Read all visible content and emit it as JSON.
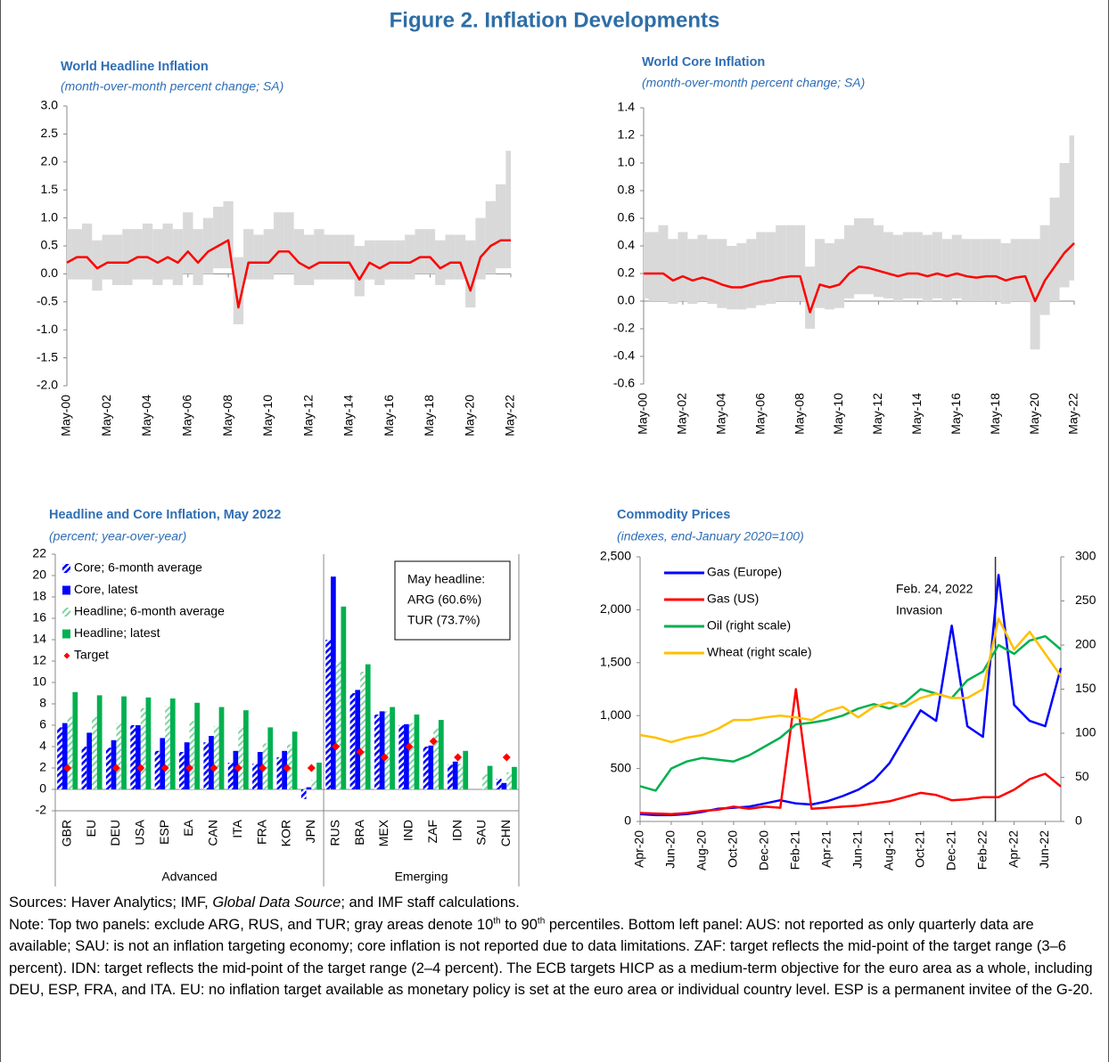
{
  "title": "Figure 2. Inflation Developments",
  "chart_data": [
    {
      "type": "line",
      "title": "World Headline Inflation",
      "subtitle": "(month-over-month percent change; SA)",
      "categories": [
        "May-00",
        null,
        null,
        null,
        "May-02",
        null,
        null,
        null,
        "May-04",
        null,
        null,
        null,
        "May-06",
        null,
        null,
        null,
        "May-08",
        null,
        null,
        null,
        "May-10",
        null,
        null,
        null,
        "May-12",
        null,
        null,
        null,
        "May-14",
        null,
        null,
        null,
        "May-16",
        null,
        null,
        null,
        "May-18",
        null,
        null,
        null,
        "May-20",
        null,
        null,
        null,
        "May-22"
      ],
      "band": {
        "color": "#d9d9d9",
        "low": [
          -0.1,
          -0.1,
          -0.1,
          -0.3,
          -0.1,
          -0.2,
          -0.2,
          -0.1,
          -0.1,
          -0.2,
          -0.1,
          -0.2,
          0.0,
          -0.2,
          0.0,
          0.1,
          0.1,
          -0.9,
          -0.1,
          -0.1,
          -0.1,
          0.0,
          0.0,
          -0.2,
          -0.2,
          -0.1,
          -0.1,
          -0.1,
          -0.1,
          -0.4,
          -0.1,
          -0.2,
          -0.1,
          -0.1,
          -0.1,
          0.0,
          0.0,
          -0.2,
          -0.1,
          -0.1,
          -0.6,
          -0.1,
          0.0,
          0.1,
          0.1
        ],
        "high": [
          0.8,
          0.8,
          0.9,
          0.6,
          0.7,
          0.7,
          0.8,
          0.8,
          0.9,
          0.8,
          0.9,
          0.8,
          1.1,
          0.8,
          1.0,
          1.2,
          1.3,
          0.3,
          0.8,
          0.7,
          0.8,
          1.1,
          1.1,
          0.8,
          0.7,
          0.8,
          0.7,
          0.7,
          0.7,
          0.5,
          0.6,
          0.6,
          0.6,
          0.6,
          0.7,
          0.8,
          0.8,
          0.6,
          0.7,
          0.7,
          0.6,
          1.0,
          1.3,
          1.6,
          2.2
        ]
      },
      "series": [
        {
          "color": "#ff0000",
          "values": [
            0.2,
            0.3,
            0.3,
            0.1,
            0.2,
            0.2,
            0.2,
            0.3,
            0.3,
            0.2,
            0.3,
            0.2,
            0.4,
            0.2,
            0.4,
            0.5,
            0.6,
            -0.6,
            0.2,
            0.2,
            0.2,
            0.4,
            0.4,
            0.2,
            0.1,
            0.2,
            0.2,
            0.2,
            0.2,
            -0.1,
            0.2,
            0.1,
            0.2,
            0.2,
            0.2,
            0.3,
            0.3,
            0.1,
            0.2,
            0.2,
            -0.3,
            0.3,
            0.5,
            0.6,
            0.6
          ]
        }
      ],
      "ylim": [
        -2,
        3
      ],
      "yticks": [
        {
          "value": -2,
          "label": "-2.0"
        },
        -1.5,
        {
          "value": -1,
          "label": "-1.0"
        },
        -0.5,
        {
          "value": 0,
          "label": "0.0"
        },
        0.5,
        {
          "value": 1,
          "label": "1.0"
        },
        1.5,
        {
          "value": 2,
          "label": "2.0"
        },
        2.5,
        {
          "value": 3,
          "label": "3.0"
        }
      ]
    },
    {
      "type": "line",
      "title": "World Core Inflation",
      "subtitle": "(month-over-month percent change; SA)",
      "categories": [
        "May-00",
        null,
        null,
        null,
        "May-02",
        null,
        null,
        null,
        "May-04",
        null,
        null,
        null,
        "May-06",
        null,
        null,
        null,
        "May-08",
        null,
        null,
        null,
        "May-10",
        null,
        null,
        null,
        "May-12",
        null,
        null,
        null,
        "May-14",
        null,
        null,
        null,
        "May-16",
        null,
        null,
        null,
        "May-18",
        null,
        null,
        null,
        "May-20",
        null,
        null,
        null,
        "May-22"
      ],
      "band": {
        "color": "#d9d9d9",
        "low": [
          0.02,
          0.0,
          0.0,
          -0.02,
          0.0,
          -0.02,
          0.0,
          -0.02,
          -0.05,
          -0.06,
          -0.06,
          -0.05,
          -0.03,
          -0.02,
          0.0,
          0.0,
          0.0,
          -0.2,
          -0.05,
          -0.06,
          -0.05,
          0.02,
          0.05,
          0.05,
          0.03,
          0.02,
          0.0,
          0.02,
          0.02,
          0.0,
          0.02,
          0.0,
          0.02,
          0.0,
          0.0,
          0.0,
          0.0,
          -0.02,
          0.0,
          0.0,
          -0.35,
          -0.1,
          0.0,
          0.1,
          0.15
        ],
        "high": [
          0.5,
          0.5,
          0.55,
          0.45,
          0.5,
          0.45,
          0.48,
          0.45,
          0.45,
          0.4,
          0.42,
          0.45,
          0.5,
          0.5,
          0.55,
          0.55,
          0.55,
          0.25,
          0.45,
          0.42,
          0.45,
          0.55,
          0.6,
          0.6,
          0.55,
          0.5,
          0.48,
          0.5,
          0.5,
          0.48,
          0.5,
          0.45,
          0.48,
          0.45,
          0.45,
          0.45,
          0.45,
          0.42,
          0.45,
          0.45,
          0.45,
          0.55,
          0.75,
          1.0,
          1.2
        ]
      },
      "series": [
        {
          "color": "#ff0000",
          "values": [
            0.2,
            0.2,
            0.2,
            0.15,
            0.18,
            0.15,
            0.17,
            0.15,
            0.12,
            0.1,
            0.1,
            0.12,
            0.14,
            0.15,
            0.17,
            0.18,
            0.18,
            -0.08,
            0.12,
            0.1,
            0.12,
            0.2,
            0.25,
            0.24,
            0.22,
            0.2,
            0.18,
            0.2,
            0.2,
            0.18,
            0.2,
            0.18,
            0.2,
            0.18,
            0.17,
            0.18,
            0.18,
            0.15,
            0.17,
            0.18,
            0.0,
            0.15,
            0.25,
            0.35,
            0.42
          ]
        }
      ],
      "ylim": [
        -0.6,
        1.4
      ],
      "yticks": [
        -0.6,
        -0.4,
        -0.2,
        {
          "value": 0,
          "label": "0.0"
        },
        0.2,
        0.4,
        0.6,
        0.8,
        {
          "value": 1,
          "label": "1.0"
        },
        1.2,
        1.4
      ]
    },
    {
      "type": "bar",
      "title": "Headline and Core Inflation, May 2022",
      "subtitle": "(percent; year-over-year)",
      "categories": [
        "GBR",
        "EU",
        "DEU",
        "USA",
        "ESP",
        "EA",
        "CAN",
        "ITA",
        "FRA",
        "KOR",
        "JPN",
        "RUS",
        "BRA",
        "MEX",
        "IND",
        "ZAF",
        "IDN",
        "SAU",
        "CHN"
      ],
      "category_groups": [
        "Advanced",
        "Advanced",
        "Advanced",
        "Advanced",
        "Advanced",
        "Advanced",
        "Advanced",
        "Advanced",
        "Advanced",
        "Advanced",
        "Advanced",
        "Emerging",
        "Emerging",
        "Emerging",
        "Emerging",
        "Emerging",
        "Emerging",
        "Emerging",
        "Emerging"
      ],
      "series": [
        {
          "name": "Core; 6-month average",
          "color": "#0000ff",
          "pattern": "hatch",
          "values": [
            5.8,
            4.0,
            3.9,
            6.0,
            3.6,
            3.5,
            4.4,
            2.5,
            2.4,
            3.0,
            -0.9,
            14.0,
            9.0,
            7.0,
            6.0,
            4.0,
            2.3,
            null,
            1.0
          ]
        },
        {
          "name": "Core, latest",
          "color": "#0000ff",
          "values": [
            6.2,
            5.3,
            4.6,
            6.0,
            4.8,
            4.4,
            5.0,
            3.6,
            3.5,
            3.6,
            0.2,
            19.9,
            9.3,
            7.3,
            6.1,
            4.1,
            2.6,
            null,
            0.6
          ]
        },
        {
          "name": "Headline; 6-month average",
          "color": "#00b050",
          "pattern": "hatch",
          "values": [
            6.8,
            6.8,
            6.2,
            7.6,
            7.8,
            6.4,
            5.9,
            5.8,
            4.3,
            4.2,
            0.9,
            12.0,
            11.0,
            7.3,
            6.2,
            5.7,
            2.4,
            1.4,
            1.6
          ]
        },
        {
          "name": "Headline; latest",
          "color": "#00b050",
          "values": [
            9.1,
            8.8,
            8.7,
            8.6,
            8.5,
            8.1,
            7.7,
            7.4,
            5.8,
            5.4,
            2.5,
            17.1,
            11.7,
            7.7,
            7.0,
            6.5,
            3.6,
            2.2,
            2.1
          ]
        },
        {
          "name": "Target",
          "color": "#ff0000",
          "marker": "diamond",
          "values": [
            2,
            null,
            2,
            2,
            2,
            2,
            2,
            2,
            2,
            2,
            2,
            4,
            3.5,
            3,
            4,
            4.5,
            3,
            null,
            3
          ]
        }
      ],
      "annotation": [
        "May headline:",
        "ARG (60.6%)",
        "TUR (73.7%)"
      ],
      "ylim": [
        -2,
        22
      ],
      "yticks": [
        -2,
        0,
        2,
        4,
        6,
        8,
        10,
        12,
        14,
        16,
        18,
        20,
        22
      ]
    },
    {
      "type": "line",
      "title": "Commodity Prices",
      "subtitle": "(indexes, end-January 2020=100)",
      "categories": [
        "Apr-20",
        null,
        "Jun-20",
        null,
        "Aug-20",
        null,
        "Oct-20",
        null,
        "Dec-20",
        null,
        "Feb-21",
        null,
        "Apr-21",
        null,
        "Jun-21",
        null,
        "Aug-21",
        null,
        "Oct-21",
        null,
        "Dec-21",
        null,
        "Feb-22",
        null,
        "Apr-22",
        null,
        "Jun-22",
        null
      ],
      "series": [
        {
          "name": "Gas (Europe)",
          "color": "#0000ff",
          "values": [
            70,
            60,
            60,
            70,
            90,
            120,
            130,
            140,
            170,
            200,
            170,
            160,
            190,
            240,
            300,
            390,
            550,
            800,
            1050,
            950,
            1850,
            900,
            800,
            2330,
            1100,
            950,
            900,
            1450
          ]
        },
        {
          "name": "Gas (US)",
          "color": "#ff0000",
          "values": [
            80,
            75,
            70,
            80,
            100,
            110,
            140,
            120,
            140,
            130,
            1250,
            120,
            130,
            140,
            150,
            170,
            190,
            230,
            270,
            250,
            200,
            210,
            230,
            230,
            300,
            400,
            450,
            330
          ]
        },
        {
          "name": "Oil (right scale)",
          "color": "#00b050",
          "axis": "y2",
          "values": [
            40,
            35,
            60,
            68,
            72,
            70,
            68,
            75,
            85,
            95,
            110,
            112,
            115,
            120,
            128,
            133,
            128,
            135,
            150,
            145,
            140,
            160,
            170,
            200,
            190,
            205,
            210,
            195
          ]
        },
        {
          "name": "Wheat (right scale)",
          "color": "#ffc000",
          "axis": "y2",
          "values": [
            98,
            95,
            90,
            95,
            98,
            105,
            115,
            115,
            118,
            120,
            118,
            115,
            125,
            130,
            118,
            130,
            135,
            130,
            140,
            145,
            140,
            140,
            150,
            230,
            195,
            215,
            190,
            165
          ]
        }
      ],
      "annotation": [
        "Feb. 24, 2022",
        "Invasion"
      ],
      "ylim": [
        0,
        2500
      ],
      "yticks": [
        0,
        500,
        {
          "value": 1000,
          "label": "1,000"
        },
        {
          "value": 1500,
          "label": "1,500"
        },
        {
          "value": 2000,
          "label": "2,000"
        },
        {
          "value": 2500,
          "label": "2,500"
        }
      ],
      "y2lim": [
        0,
        300
      ],
      "y2ticks": [
        0,
        50,
        100,
        150,
        200,
        250,
        300
      ]
    }
  ],
  "notes": {
    "sources": [
      "Sources: Haver Analytics; IMF, ",
      "Global Data Source",
      "; and IMF staff calculations."
    ],
    "note": [
      "Note: Top two panels: exclude ARG, RUS, and TUR; gray areas denote 10",
      "th",
      " to 90",
      "th",
      " percentiles. Bottom left panel: AUS: not reported as only quarterly data are available; SAU: is not an inflation targeting economy; core inflation is not reported due to data limitations. ZAF: target reflects the mid-point of the target range (3–6 percent). IDN: target reflects the mid-point of the target range (2–4 percent). The ECB targets HICP as a medium-term objective for the euro area as a whole, including DEU, ESP, FRA, and ITA. EU: no inflation target available as monetary policy is set at the euro area or individual country level. ESP is a permanent invitee of the G-20."
    ]
  }
}
